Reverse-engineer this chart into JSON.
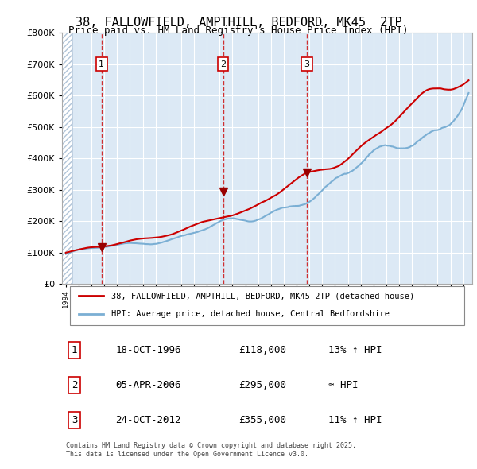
{
  "title": "38, FALLOWFIELD, AMPTHILL, BEDFORD, MK45  2TP",
  "subtitle": "Price paid vs. HM Land Registry's House Price Index (HPI)",
  "purchases": [
    {
      "label": "1",
      "date_num": 1996.79,
      "price": 118000,
      "note": "18-OCT-1996",
      "amount": "£118,000",
      "pct": "13% ↑ HPI"
    },
    {
      "label": "2",
      "date_num": 2006.26,
      "price": 295000,
      "note": "05-APR-2006",
      "amount": "£295,000",
      "pct": "≈ HPI"
    },
    {
      "label": "3",
      "date_num": 2012.81,
      "price": 355000,
      "note": "24-OCT-2012",
      "amount": "£355,000",
      "pct": "11% ↑ HPI"
    }
  ],
  "red_line_label": "38, FALLOWFIELD, AMPTHILL, BEDFORD, MK45 2TP (detached house)",
  "blue_line_label": "HPI: Average price, detached house, Central Bedfordshire",
  "copyright": "Contains HM Land Registry data © Crown copyright and database right 2025.\nThis data is licensed under the Open Government Licence v3.0.",
  "ylim": [
    0,
    800000
  ],
  "yticks": [
    0,
    100000,
    200000,
    300000,
    400000,
    500000,
    600000,
    700000,
    800000
  ],
  "background_color": "#dce9f5",
  "plot_bg": "#dce9f5",
  "hatch_color": "#b0c4d8",
  "red_color": "#cc0000",
  "blue_color": "#7bafd4",
  "vline_color": "#cc0000",
  "marker_color": "#990000"
}
